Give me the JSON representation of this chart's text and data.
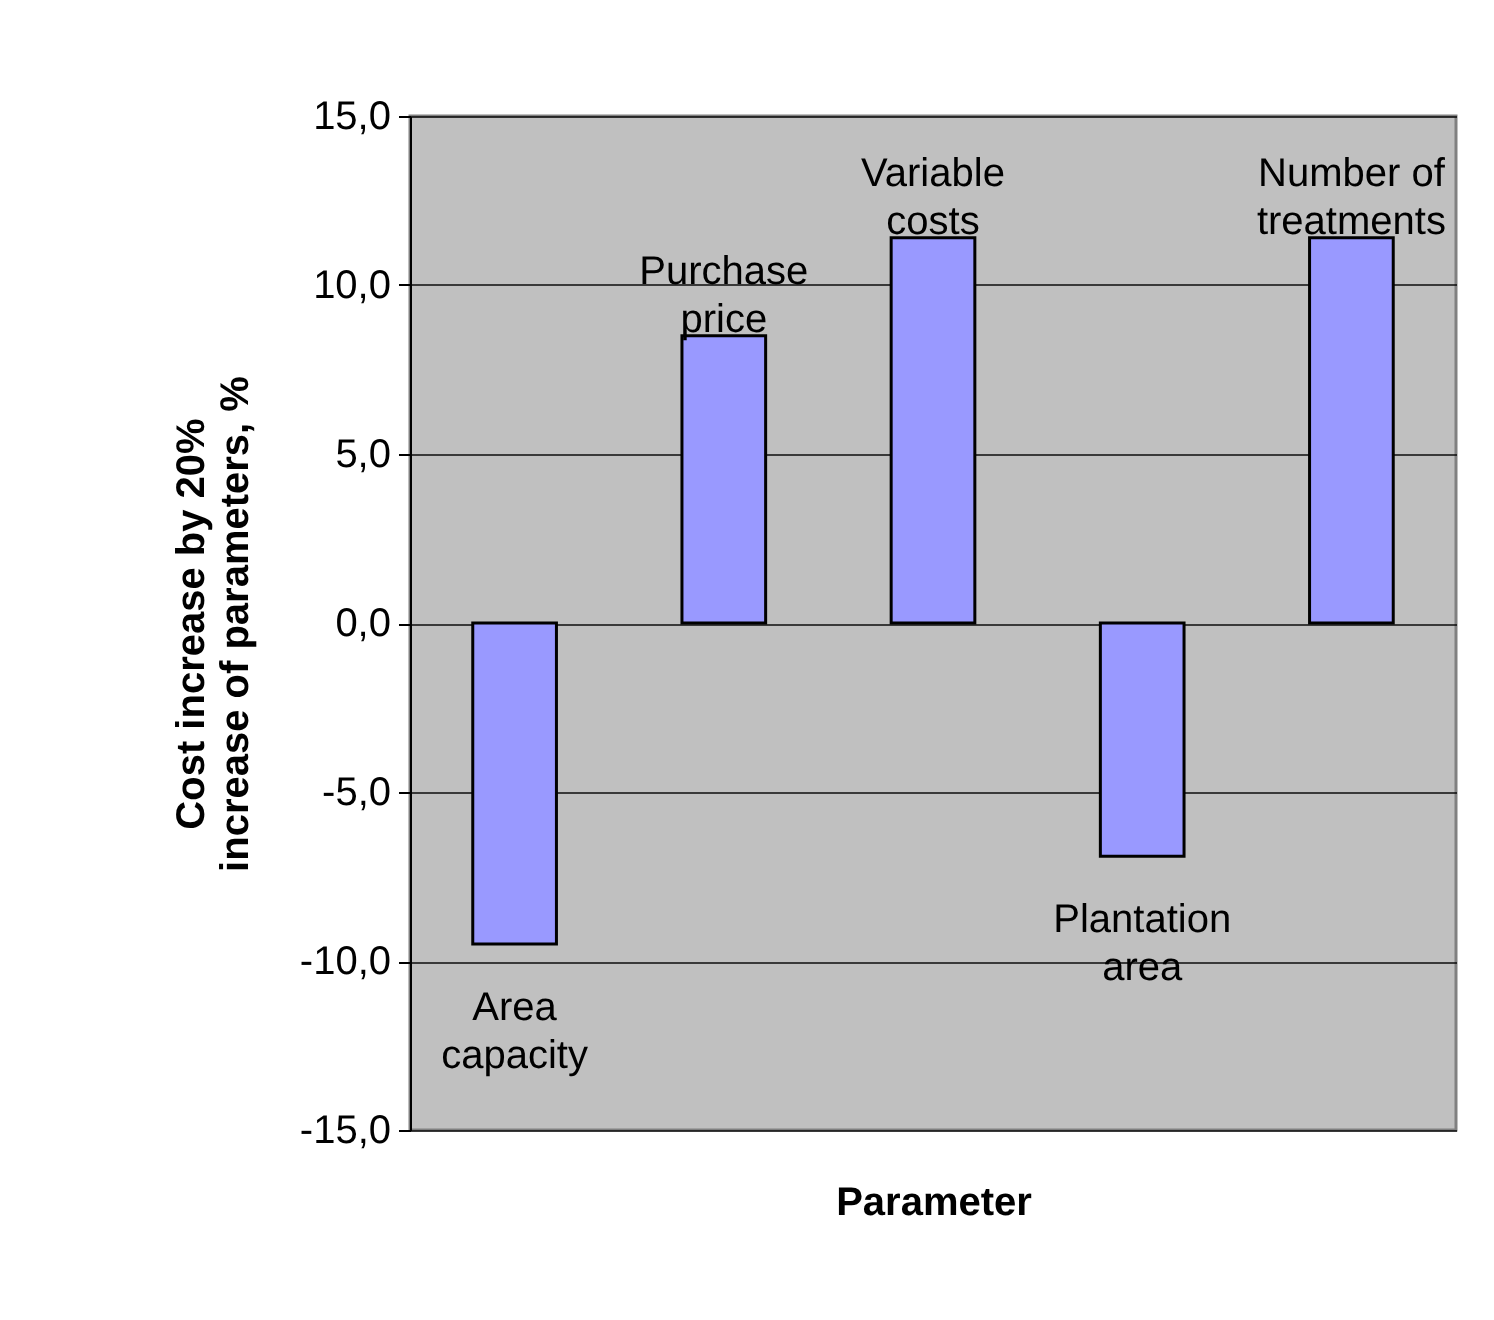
{
  "chart_data": {
    "type": "bar",
    "xlabel": "Parameter",
    "ylabel": "Cost increase by 20% increase of parameters, %",
    "categories": [
      "Area capacity",
      "Purchase price",
      "Variable costs",
      "Plantation area",
      "Number of treatments"
    ],
    "values": [
      -9.5,
      8.5,
      11.4,
      -6.9,
      11.4
    ],
    "color": "#9999ff",
    "ylim": [
      -15,
      15
    ],
    "yticks": [
      {
        "value": -15,
        "label": "-15,0"
      },
      {
        "value": -10,
        "label": "-10,0"
      },
      {
        "value": -5,
        "label": "-5,0"
      },
      {
        "value": 0,
        "label": "0,0"
      },
      {
        "value": 5,
        "label": "5,0"
      },
      {
        "value": 10,
        "label": "10,0"
      },
      {
        "value": 15,
        "label": "15,0"
      }
    ],
    "grid": "y",
    "tick_labels": "y"
  }
}
